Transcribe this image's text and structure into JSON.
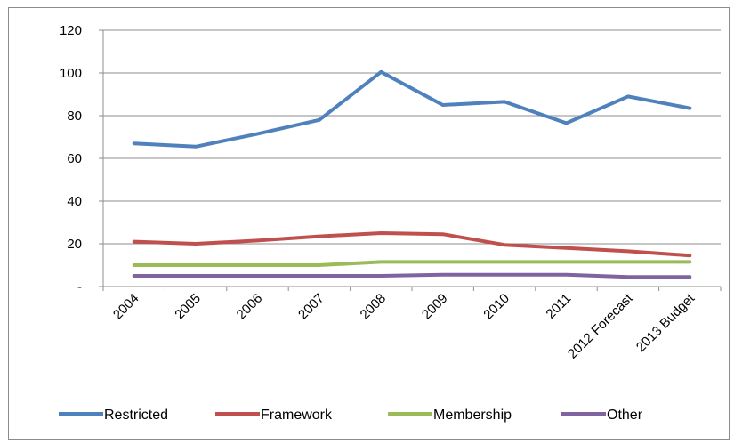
{
  "chart_data": {
    "type": "line",
    "title": "",
    "xlabel": "",
    "ylabel": "",
    "categories": [
      "2004",
      "2005",
      "2006",
      "2007",
      "2008",
      "2009",
      "2010",
      "2011",
      "2012 Forecast",
      "2013 Budget"
    ],
    "ylim": [
      0,
      120
    ],
    "yticks": [
      0,
      20,
      40,
      60,
      80,
      100,
      120
    ],
    "ytick_labels": [
      "-",
      "20",
      "40",
      "60",
      "80",
      "100",
      "120"
    ],
    "grid": true,
    "legend_position": "bottom",
    "series": [
      {
        "name": "Restricted",
        "color": "#4f81bd",
        "values": [
          67,
          65.5,
          71.5,
          78,
          100.5,
          85,
          86.5,
          76.5,
          89,
          83.5
        ]
      },
      {
        "name": "Framework",
        "color": "#c0504d",
        "values": [
          21,
          20,
          21.5,
          23.5,
          25,
          24.5,
          19.5,
          18,
          16.5,
          14.5
        ]
      },
      {
        "name": "Membership",
        "color": "#9bbb59",
        "values": [
          10,
          10,
          10,
          10,
          11.5,
          11.5,
          11.5,
          11.5,
          11.5,
          11.5
        ]
      },
      {
        "name": "Other",
        "color": "#8064a2",
        "values": [
          5,
          5,
          5,
          5,
          5,
          5.5,
          5.5,
          5.5,
          4.5,
          4.5
        ]
      }
    ]
  }
}
